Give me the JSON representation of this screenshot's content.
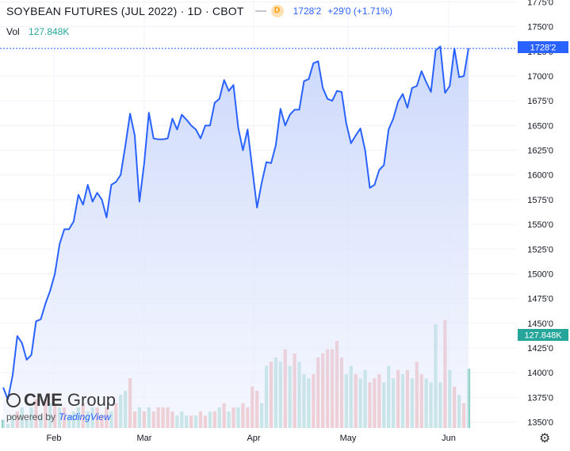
{
  "header": {
    "title": "SOYBEAN FUTURES (JUL 2022) · 1D · CBOT",
    "badge": "D",
    "price": "1728'2",
    "change": "+29'0 (+1.71%)"
  },
  "volume_legend": {
    "label": "Vol",
    "value": "127.848K"
  },
  "branding": {
    "logo_text": "CME",
    "logo_group": "Group",
    "powered_by": "powered by",
    "tradingview": "TradingView"
  },
  "colors": {
    "line": "#2962ff",
    "area_top": "#c9d6fb",
    "vol_up": "#8fd1c7",
    "vol_down": "#ef9a9a",
    "grid": "#f0f3fa"
  },
  "chart_data": {
    "type": "area",
    "title": "SOYBEAN FUTURES (JUL 2022) · 1D · CBOT",
    "price_axis": {
      "ticks": [
        "1350'0",
        "1375'0",
        "1400'0",
        "1425'0",
        "1450'0",
        "1475'0",
        "1500'0",
        "1525'0",
        "1550'0",
        "1575'0",
        "1600'0",
        "1625'0",
        "1650'0",
        "1675'0",
        "1700'0",
        "1725'0",
        "1750'0",
        "1775'0"
      ],
      "tick_values": [
        1350,
        1375,
        1400,
        1425,
        1450,
        1475,
        1500,
        1525,
        1550,
        1575,
        1600,
        1625,
        1650,
        1675,
        1700,
        1725,
        1750,
        1775
      ],
      "range": [
        1344,
        1777
      ]
    },
    "x_axis": {
      "labels": [
        "Feb",
        "Mar",
        "Apr",
        "May",
        "Jun"
      ]
    },
    "last_price_label": "1728'2",
    "last_volume_label": "127.848K",
    "series": [
      {
        "name": "Price",
        "values": [
          1385,
          1373,
          1397,
          1437,
          1430,
          1413,
          1418,
          1452,
          1454,
          1470,
          1483,
          1500,
          1530,
          1545,
          1545,
          1553,
          1580,
          1570,
          1590,
          1573,
          1582,
          1575,
          1557,
          1590,
          1593,
          1600,
          1630,
          1662,
          1640,
          1573,
          1612,
          1663,
          1637,
          1636,
          1636,
          1637,
          1657,
          1646,
          1661,
          1656,
          1650,
          1646,
          1637,
          1650,
          1650,
          1673,
          1677,
          1696,
          1685,
          1691,
          1648,
          1625,
          1646,
          1606,
          1567,
          1592,
          1613,
          1612,
          1630,
          1667,
          1650,
          1661,
          1666,
          1666,
          1695,
          1697,
          1713,
          1715,
          1688,
          1677,
          1675,
          1685,
          1684,
          1652,
          1632,
          1640,
          1647,
          1625,
          1587,
          1590,
          1605,
          1610,
          1646,
          1657,
          1674,
          1682,
          1668,
          1688,
          1690,
          1705,
          1694,
          1684,
          1726,
          1730,
          1683,
          1690,
          1728,
          1699,
          1700,
          1728
        ]
      },
      {
        "name": "Volume",
        "values": [
          2,
          1,
          3,
          4,
          5,
          2,
          5,
          7,
          3,
          7,
          6,
          6,
          5,
          5,
          3,
          4,
          5,
          6,
          4,
          5,
          5,
          3,
          5,
          4,
          6,
          8,
          9,
          12,
          4,
          5,
          4,
          5,
          4,
          5,
          5,
          5,
          4,
          3,
          4,
          3,
          3,
          3,
          4,
          3,
          4,
          4,
          5,
          6,
          4,
          5,
          5,
          6,
          5,
          10,
          9,
          6,
          15,
          16,
          17,
          16,
          19,
          15,
          18,
          16,
          13,
          12,
          13,
          17,
          18,
          19,
          19,
          21,
          17,
          13,
          15,
          13,
          12,
          14,
          11,
          12,
          13,
          11,
          15,
          12,
          14,
          13,
          14,
          12,
          16,
          13,
          12,
          11,
          25,
          11,
          26,
          14,
          10,
          8,
          6,
          14.3
        ],
        "direction": [
          "up",
          "up",
          "up",
          "down",
          "up",
          "up",
          "up",
          "down",
          "up",
          "down",
          "up",
          "down",
          "up",
          "down",
          "up",
          "up",
          "up",
          "down",
          "up",
          "up",
          "down",
          "down",
          "down",
          "up",
          "down",
          "up",
          "up",
          "down",
          "down",
          "up",
          "down",
          "up",
          "down",
          "down",
          "down",
          "down",
          "down",
          "up",
          "up",
          "up",
          "down",
          "up",
          "down",
          "down",
          "up",
          "down",
          "up",
          "down",
          "up",
          "down",
          "up",
          "down",
          "down",
          "down",
          "down",
          "up",
          "up",
          "down",
          "up",
          "up",
          "down",
          "up",
          "down",
          "up",
          "up",
          "up",
          "down",
          "down",
          "down",
          "down",
          "down",
          "down",
          "down",
          "up",
          "up",
          "down",
          "up",
          "up",
          "down",
          "down",
          "down",
          "up",
          "up",
          "up",
          "down",
          "up",
          "down",
          "up",
          "down",
          "down",
          "up",
          "up",
          "up",
          "up",
          "down",
          "up",
          "down",
          "up",
          "down",
          "up"
        ]
      }
    ],
    "grid": true
  }
}
